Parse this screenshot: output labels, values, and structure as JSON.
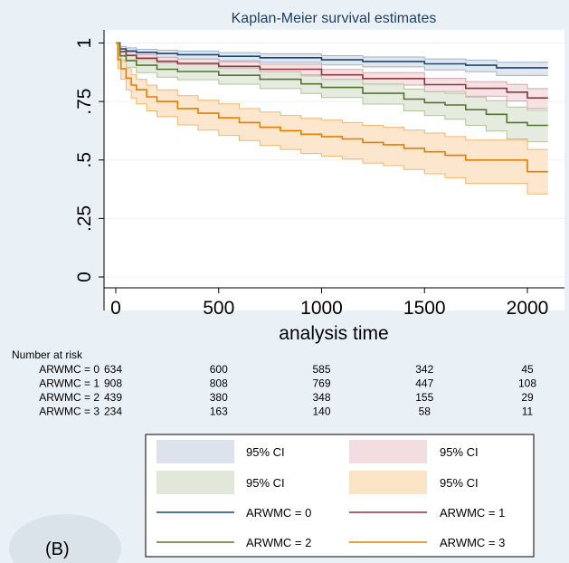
{
  "chart_data": {
    "type": "line",
    "title": "Kaplan-Meier survival estimates",
    "xlabel": "analysis time",
    "ylabel": "",
    "xlim": [
      0,
      2130
    ],
    "ylim": [
      0,
      1
    ],
    "xticks": [
      0,
      500,
      1000,
      1500,
      2000
    ],
    "xtick_labels": [
      "0",
      "500",
      "1000",
      "1500",
      "2000"
    ],
    "yticks": [
      0,
      0.25,
      0.5,
      0.75,
      1
    ],
    "ytick_labels": [
      "0",
      ".25",
      ".5",
      ".75",
      "1"
    ],
    "grid": "horizontal",
    "step": true,
    "series": [
      {
        "name": "ARWMC = 0",
        "color": "#1a476f",
        "ci_color": "#dde3ec",
        "ci_edge": "#9fb2cd",
        "x": [
          0,
          20,
          50,
          100,
          200,
          300,
          500,
          700,
          1000,
          1200,
          1500,
          1700,
          1850,
          2000,
          2100
        ],
        "y": [
          1,
          0.975,
          0.966,
          0.96,
          0.955,
          0.95,
          0.943,
          0.937,
          0.928,
          0.921,
          0.911,
          0.905,
          0.894,
          0.894,
          0.894
        ],
        "lower": [
          1,
          0.962,
          0.951,
          0.944,
          0.938,
          0.932,
          0.924,
          0.917,
          0.906,
          0.898,
          0.885,
          0.877,
          0.861,
          0.861,
          0.861
        ],
        "upper": [
          1,
          0.985,
          0.979,
          0.973,
          0.969,
          0.965,
          0.959,
          0.954,
          0.946,
          0.94,
          0.932,
          0.927,
          0.918,
          0.918,
          0.918
        ]
      },
      {
        "name": "ARWMC = 1",
        "color": "#90353b",
        "ci_color": "#f3dde1",
        "ci_edge": "#d2a7ad",
        "x": [
          0,
          20,
          50,
          100,
          200,
          300,
          500,
          700,
          1000,
          1200,
          1500,
          1700,
          1900,
          2000,
          2100
        ],
        "y": [
          1,
          0.963,
          0.947,
          0.935,
          0.922,
          0.913,
          0.9,
          0.888,
          0.864,
          0.848,
          0.822,
          0.806,
          0.79,
          0.765,
          0.765
        ],
        "lower": [
          1,
          0.949,
          0.93,
          0.917,
          0.902,
          0.892,
          0.877,
          0.864,
          0.838,
          0.82,
          0.792,
          0.773,
          0.752,
          0.72,
          0.72
        ],
        "upper": [
          1,
          0.974,
          0.961,
          0.951,
          0.939,
          0.931,
          0.92,
          0.909,
          0.887,
          0.873,
          0.849,
          0.835,
          0.823,
          0.805,
          0.805
        ]
      },
      {
        "name": "ARWMC = 2",
        "color": "#55752f",
        "ci_color": "#e1e8d9",
        "ci_edge": "#b2c49c",
        "x": [
          0,
          20,
          50,
          100,
          200,
          300,
          500,
          700,
          900,
          1000,
          1200,
          1400,
          1500,
          1600,
          1700,
          1800,
          1900,
          2000,
          2100
        ],
        "y": [
          1,
          0.945,
          0.925,
          0.905,
          0.888,
          0.878,
          0.862,
          0.845,
          0.825,
          0.81,
          0.785,
          0.76,
          0.745,
          0.735,
          0.715,
          0.695,
          0.66,
          0.648,
          0.648
        ],
        "lower": [
          1,
          0.92,
          0.896,
          0.873,
          0.854,
          0.843,
          0.824,
          0.805,
          0.784,
          0.767,
          0.739,
          0.71,
          0.69,
          0.674,
          0.648,
          0.624,
          0.59,
          0.578,
          0.578
        ],
        "upper": [
          1,
          0.962,
          0.945,
          0.929,
          0.915,
          0.907,
          0.892,
          0.877,
          0.859,
          0.845,
          0.825,
          0.803,
          0.792,
          0.785,
          0.769,
          0.754,
          0.726,
          0.712,
          0.712
        ]
      },
      {
        "name": "ARWMC = 3",
        "color": "#e37e00",
        "ci_color": "#fbe3c6",
        "ci_edge": "#f2b66c",
        "x": [
          0,
          10,
          25,
          50,
          75,
          100,
          150,
          200,
          300,
          400,
          500,
          600,
          700,
          800,
          900,
          1000,
          1100,
          1200,
          1300,
          1400,
          1500,
          1600,
          1700,
          1800,
          1900,
          2000,
          2100
        ],
        "y": [
          1,
          0.93,
          0.89,
          0.85,
          0.82,
          0.8,
          0.77,
          0.75,
          0.72,
          0.7,
          0.68,
          0.66,
          0.64,
          0.625,
          0.61,
          0.6,
          0.59,
          0.575,
          0.565,
          0.55,
          0.535,
          0.52,
          0.5,
          0.5,
          0.5,
          0.45,
          0.45
        ],
        "lower": [
          1,
          0.89,
          0.845,
          0.8,
          0.765,
          0.74,
          0.71,
          0.685,
          0.65,
          0.628,
          0.605,
          0.583,
          0.562,
          0.545,
          0.528,
          0.516,
          0.504,
          0.487,
          0.476,
          0.459,
          0.441,
          0.424,
          0.4,
          0.4,
          0.4,
          0.355,
          0.355
        ],
        "upper": [
          1,
          0.955,
          0.925,
          0.89,
          0.865,
          0.845,
          0.82,
          0.8,
          0.775,
          0.755,
          0.74,
          0.72,
          0.705,
          0.69,
          0.678,
          0.67,
          0.66,
          0.648,
          0.64,
          0.628,
          0.615,
          0.6,
          0.585,
          0.585,
          0.585,
          0.545,
          0.545
        ]
      }
    ],
    "risk_table": {
      "heading": "Number at risk",
      "rows": [
        {
          "label": "ARWMC = 0",
          "values": [
            "634",
            "600",
            "585",
            "342",
            "45"
          ]
        },
        {
          "label": "ARWMC = 1",
          "values": [
            "908",
            "808",
            "769",
            "447",
            "108"
          ]
        },
        {
          "label": "ARWMC = 2",
          "values": [
            "439",
            "380",
            "348",
            "155",
            "29"
          ]
        },
        {
          "label": "ARWMC = 3",
          "values": [
            "234",
            "163",
            "140",
            "58",
            "11"
          ]
        }
      ]
    },
    "legend": {
      "position": "bottom",
      "ci_label": "95% CI",
      "entries": [
        "ARWMC = 0",
        "ARWMC = 1",
        "ARWMC = 2",
        "ARWMC = 3"
      ]
    }
  },
  "panel_label": "(B)"
}
